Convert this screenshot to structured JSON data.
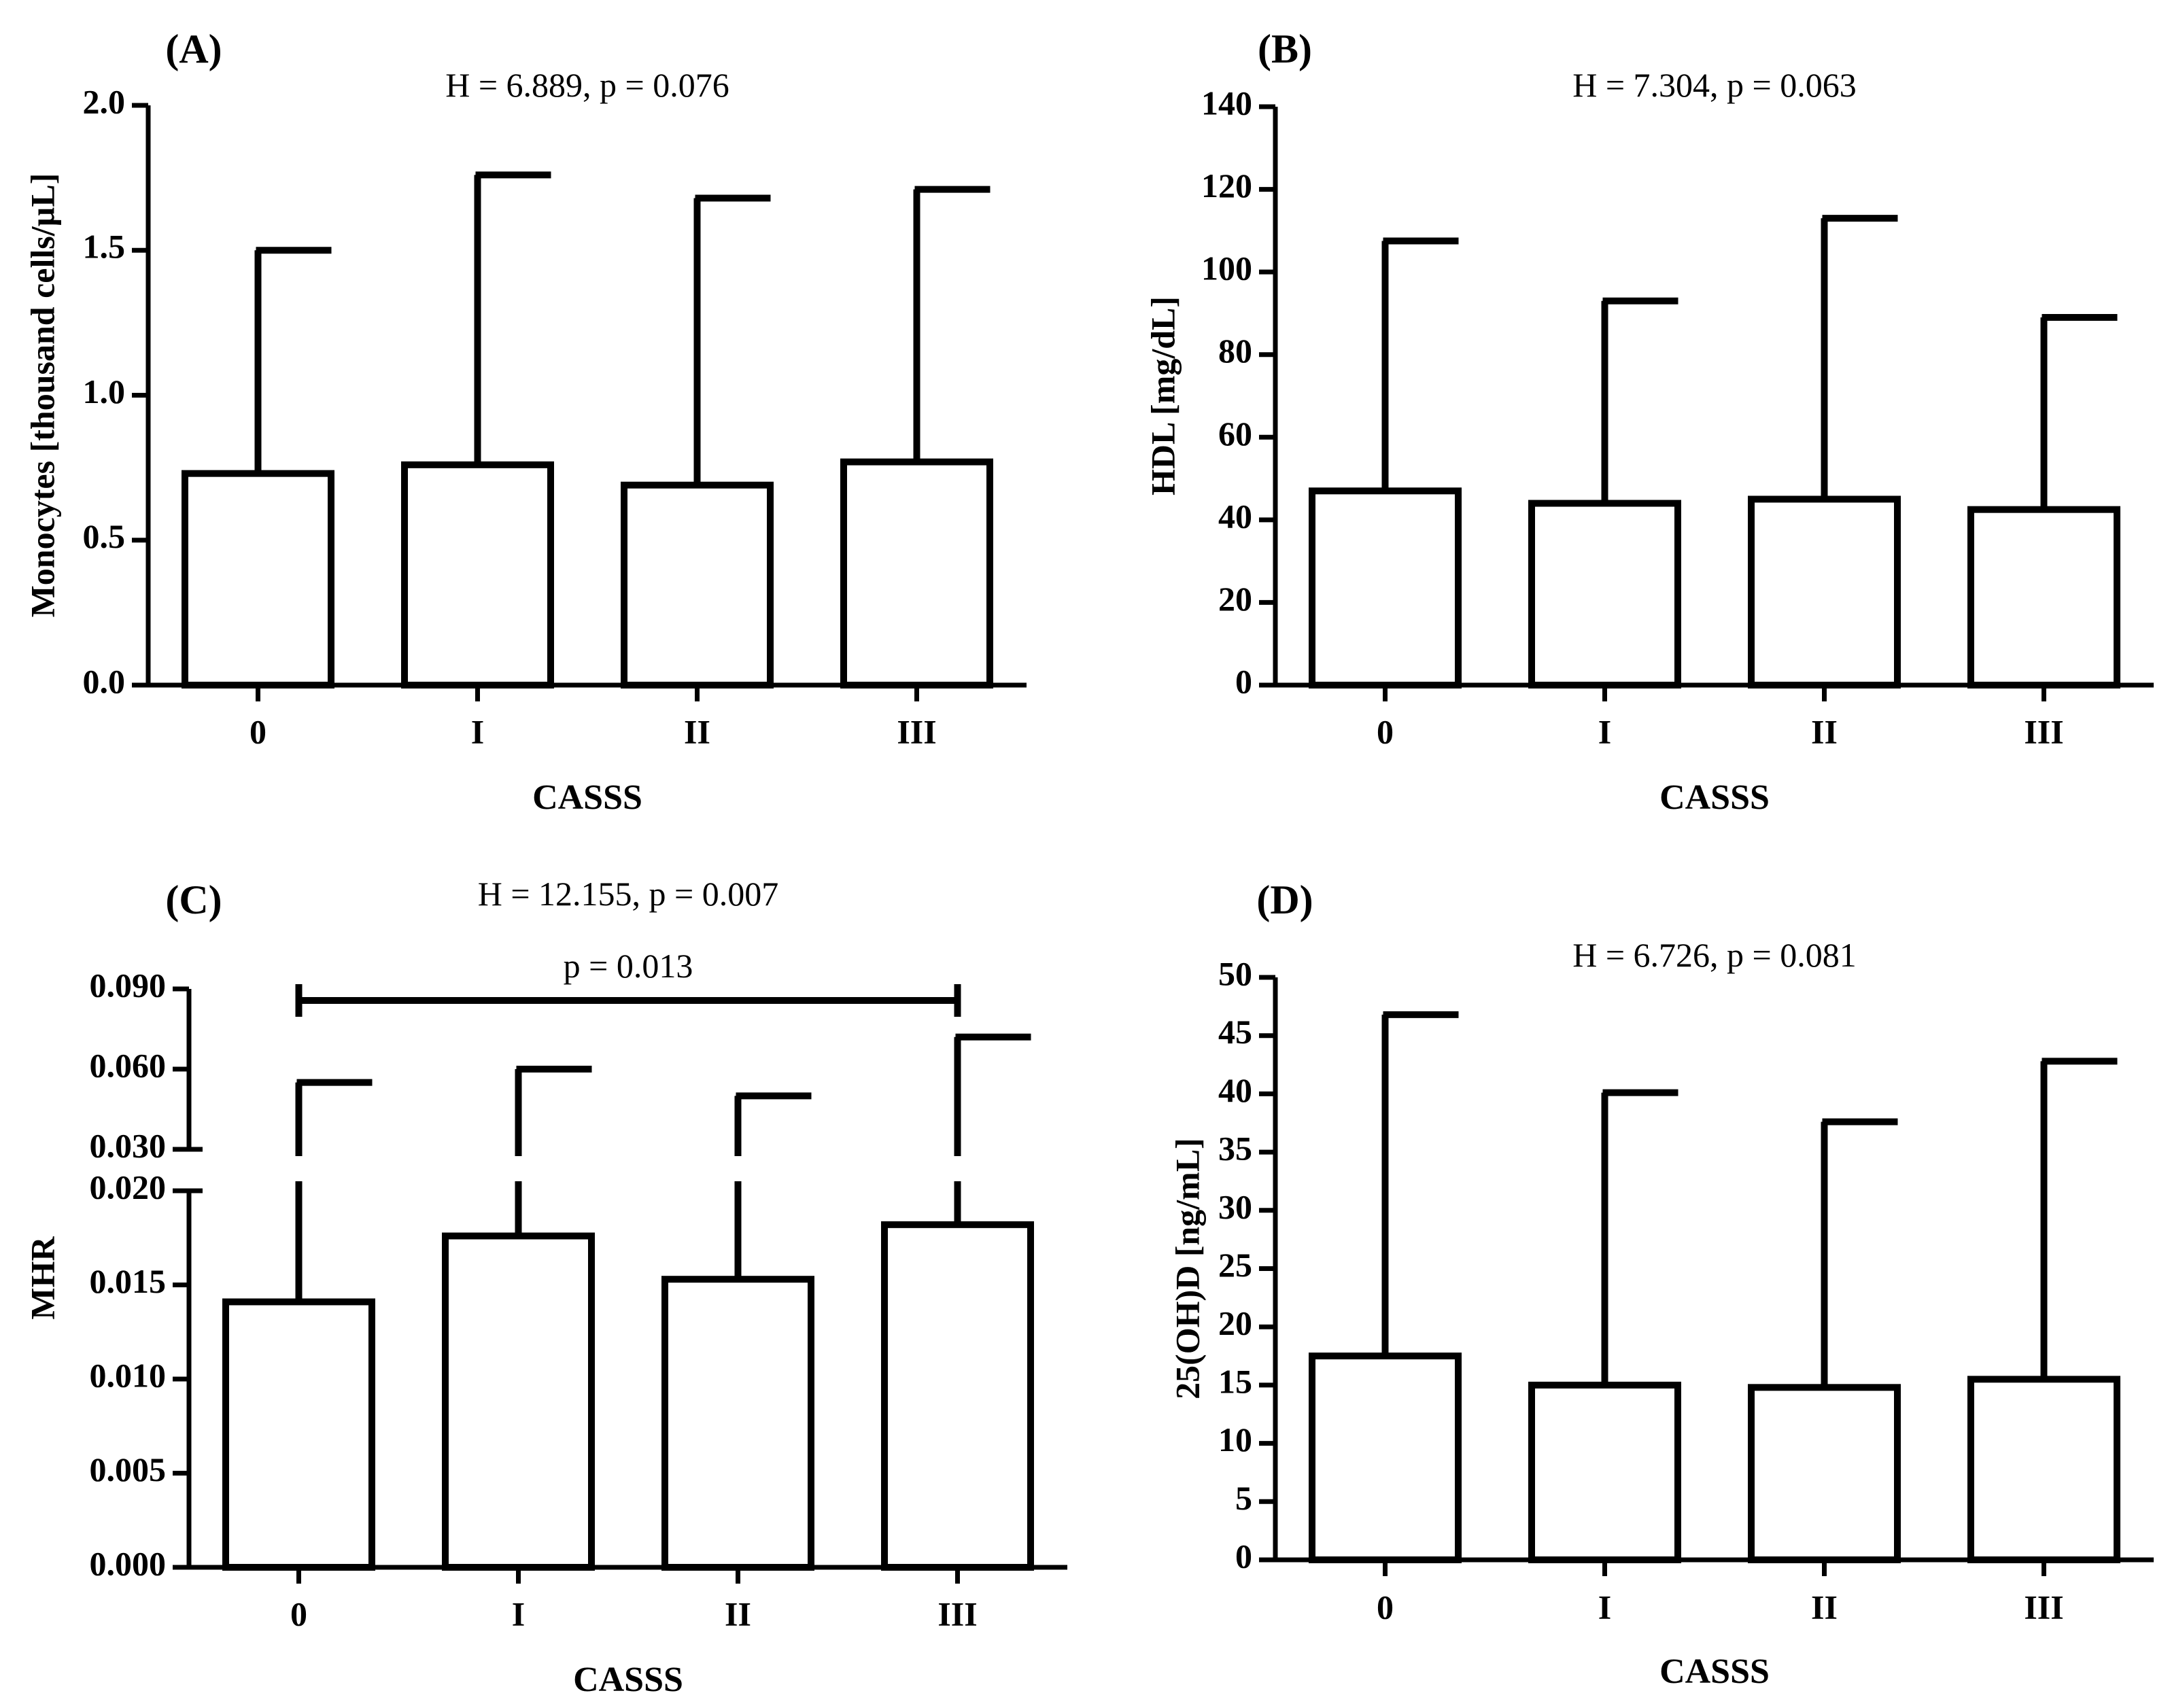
{
  "chart_data": [
    {
      "id": "A",
      "type": "bar",
      "panel_label": "(A)",
      "stat_text": "H = 6.889, p = 0.076",
      "categories": [
        "0",
        "I",
        "II",
        "III"
      ],
      "values": [
        0.73,
        0.76,
        0.69,
        0.77
      ],
      "error_upper": [
        1.5,
        1.76,
        1.68,
        1.71
      ],
      "ylabel": "Monocytes [thousand cells/µL]",
      "xlabel": "CASSS",
      "ylim": [
        0,
        2.0
      ],
      "yticks": [
        "0.0",
        "0.5",
        "1.0",
        "1.5",
        "2.0"
      ]
    },
    {
      "id": "B",
      "type": "bar",
      "panel_label": "(B)",
      "stat_text": "H = 7.304, p = 0.063",
      "categories": [
        "0",
        "I",
        "II",
        "III"
      ],
      "values": [
        47,
        44,
        45,
        42.5
      ],
      "error_upper": [
        107.5,
        93,
        113,
        89
      ],
      "ylabel": "HDL [mg/dL]",
      "xlabel": "CASSS",
      "ylim": [
        0,
        140
      ],
      "yticks": [
        "0",
        "20",
        "40",
        "60",
        "80",
        "100",
        "120",
        "140"
      ]
    },
    {
      "id": "C",
      "type": "bar",
      "panel_label": "(C)",
      "stat_text": "H = 12.155, p = 0.007",
      "comparison_text": "p = 0.013",
      "comparison_between": [
        "0",
        "III"
      ],
      "categories": [
        "0",
        "I",
        "II",
        "III"
      ],
      "values": [
        0.0141,
        0.0176,
        0.0153,
        0.0182
      ],
      "error_upper": [
        0.055,
        0.06,
        0.05,
        0.072
      ],
      "ylabel": "MHR",
      "xlabel": "CASSS",
      "ylim": [
        0,
        0.09
      ],
      "axis_break": [
        0.02,
        0.03
      ],
      "yticks": [
        "0.000",
        "0.005",
        "0.010",
        "0.015",
        "0.020",
        "0.030",
        "0.060",
        "0.090"
      ]
    },
    {
      "id": "D",
      "type": "bar",
      "panel_label": "(D)",
      "stat_text": "H = 6.726, p = 0.081",
      "categories": [
        "0",
        "I",
        "II",
        "III"
      ],
      "values": [
        17.5,
        15,
        14.8,
        15.5
      ],
      "error_upper": [
        46.8,
        40.1,
        37.6,
        42.8
      ],
      "ylabel": "25(OH)D [ng/mL]",
      "xlabel": "CASSS",
      "ylim": [
        0,
        50
      ],
      "yticks": [
        "0",
        "5",
        "10",
        "15",
        "20",
        "25",
        "30",
        "35",
        "40",
        "45",
        "50"
      ]
    }
  ]
}
